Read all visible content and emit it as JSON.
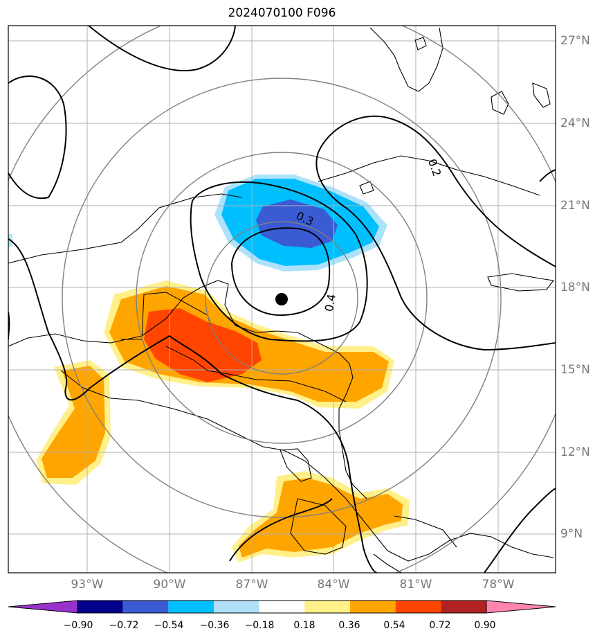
{
  "title": "2024070100 F096",
  "map": {
    "lat_ticks": [
      "27°N",
      "24°N",
      "21°N",
      "18°N",
      "15°N",
      "12°N",
      "9°N"
    ],
    "lon_ticks": [
      "93°W",
      "90°W",
      "87°W",
      "84°W",
      "81°W",
      "78°W"
    ],
    "center_marker": "storm-center-dot",
    "contour_labels": [
      "0.3",
      "0.4",
      "0.2"
    ],
    "colors": {
      "strong_negative": "#3a5bd4",
      "negative": "#00bfff",
      "weak_negative": "#aee2fa",
      "weak_positive": "#fff08a",
      "positive": "#ffa500",
      "strong_positive": "#ff4500",
      "range_rings": "#808080",
      "gridlines": "#b0b0b0",
      "coast": "#000000"
    }
  },
  "colorbar": {
    "ticks": [
      "−0.90",
      "−0.72",
      "−0.54",
      "−0.36",
      "−0.18",
      "0.18",
      "0.36",
      "0.54",
      "0.72",
      "0.90"
    ],
    "colors": [
      "#9932cc",
      "#00008b",
      "#3a5bd4",
      "#00bfff",
      "#b0e0fa",
      "#ffffff",
      "#fff08a",
      "#ffa500",
      "#ff4500",
      "#b22222",
      "#ff85b0"
    ]
  }
}
